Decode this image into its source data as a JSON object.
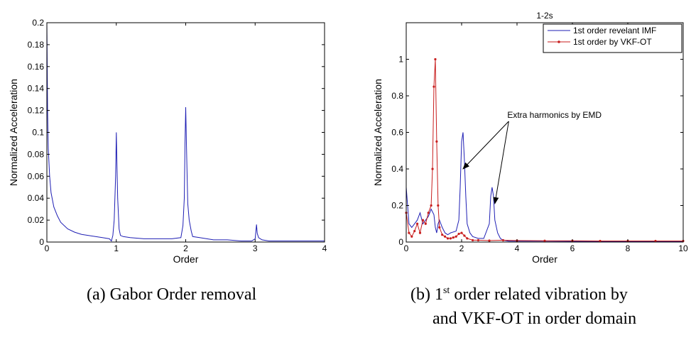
{
  "chart_data": [
    {
      "type": "line",
      "title": "",
      "xlabel": "Order",
      "ylabel": "Normalized Acceleration",
      "xlim": [
        0,
        4
      ],
      "ylim": [
        0,
        0.2
      ],
      "xticks": [
        "0",
        "1",
        "2",
        "3",
        "4"
      ],
      "yticks": [
        "0",
        "0.02",
        "0.04",
        "0.06",
        "0.08",
        "0.1",
        "0.12",
        "0.14",
        "0.16",
        "0.18",
        "0.2"
      ],
      "grid": false,
      "series": [
        {
          "color": "#1f1fb4",
          "x": [
            0,
            0.01,
            0.02,
            0.04,
            0.06,
            0.1,
            0.15,
            0.2,
            0.3,
            0.4,
            0.5,
            0.6,
            0.7,
            0.8,
            0.9,
            0.93,
            0.95,
            0.97,
            0.99,
            1.0,
            1.01,
            1.02,
            1.04,
            1.06,
            1.1,
            1.2,
            1.4,
            1.6,
            1.8,
            1.93,
            1.96,
            1.98,
            1.99,
            2.0,
            2.01,
            2.02,
            2.03,
            2.05,
            2.08,
            2.1,
            2.2,
            2.4,
            2.6,
            2.8,
            2.95,
            3.0,
            3.02,
            3.03,
            3.05,
            3.1,
            3.2,
            3.5,
            4.0
          ],
          "y": [
            0.2,
            0.12,
            0.085,
            0.06,
            0.045,
            0.032,
            0.024,
            0.018,
            0.012,
            0.009,
            0.007,
            0.006,
            0.005,
            0.004,
            0.003,
            0.001,
            0.006,
            0.02,
            0.06,
            0.1,
            0.07,
            0.04,
            0.012,
            0.006,
            0.005,
            0.004,
            0.003,
            0.003,
            0.003,
            0.004,
            0.015,
            0.04,
            0.09,
            0.123,
            0.09,
            0.06,
            0.035,
            0.02,
            0.01,
            0.005,
            0.004,
            0.002,
            0.002,
            0.001,
            0.001,
            0.003,
            0.016,
            0.008,
            0.004,
            0.002,
            0.001,
            0.001,
            0.001
          ]
        }
      ]
    },
    {
      "type": "line",
      "title": "1-2s",
      "xlabel": "Order",
      "ylabel": "Normalized Acceleration",
      "xlim": [
        0,
        10
      ],
      "ylim": [
        0,
        1.2
      ],
      "xticks": [
        "0",
        "2",
        "4",
        "6",
        "8",
        "10"
      ],
      "yticks": [
        "0",
        "0.2",
        "0.4",
        "0.6",
        "0.8",
        "1"
      ],
      "grid": false,
      "legend_position": "top-right",
      "annotation": "Extra harmonics by EMD",
      "series": [
        {
          "name": "1st order revelant IMF",
          "color": "#1f1fb4",
          "x": [
            0,
            0.1,
            0.2,
            0.3,
            0.4,
            0.5,
            0.6,
            0.7,
            0.8,
            0.9,
            1.0,
            1.05,
            1.1,
            1.15,
            1.2,
            1.3,
            1.4,
            1.5,
            1.6,
            1.8,
            1.9,
            1.95,
            2.0,
            2.05,
            2.1,
            2.15,
            2.2,
            2.3,
            2.4,
            2.6,
            2.8,
            3.0,
            3.05,
            3.1,
            3.15,
            3.2,
            3.3,
            3.4,
            3.5,
            3.7,
            4.0,
            5.0,
            6.0,
            7.0,
            8.0,
            9.0,
            10.0
          ],
          "y": [
            0.3,
            0.1,
            0.08,
            0.1,
            0.12,
            0.16,
            0.1,
            0.12,
            0.14,
            0.18,
            0.15,
            0.08,
            0.05,
            0.1,
            0.12,
            0.08,
            0.05,
            0.04,
            0.05,
            0.06,
            0.12,
            0.3,
            0.55,
            0.6,
            0.45,
            0.25,
            0.1,
            0.05,
            0.03,
            0.02,
            0.02,
            0.1,
            0.25,
            0.3,
            0.25,
            0.12,
            0.05,
            0.02,
            0.01,
            0.005,
            0.005,
            0.005,
            0.004,
            0.004,
            0.004,
            0.004,
            0.004
          ]
        },
        {
          "name": "1st order by VKF-OT",
          "color": "#c81e1e",
          "x": [
            0,
            0.1,
            0.2,
            0.3,
            0.4,
            0.5,
            0.6,
            0.7,
            0.8,
            0.9,
            0.95,
            1.0,
            1.05,
            1.1,
            1.15,
            1.2,
            1.3,
            1.4,
            1.5,
            1.6,
            1.7,
            1.8,
            1.9,
            2.0,
            2.1,
            2.2,
            2.4,
            2.6,
            3.0,
            3.5,
            4.0,
            5.0,
            6.0,
            7.0,
            8.0,
            9.0,
            10.0
          ],
          "y": [
            0.16,
            0.05,
            0.03,
            0.06,
            0.1,
            0.05,
            0.12,
            0.1,
            0.16,
            0.2,
            0.4,
            0.85,
            1.0,
            0.55,
            0.2,
            0.08,
            0.04,
            0.03,
            0.02,
            0.02,
            0.025,
            0.03,
            0.045,
            0.05,
            0.035,
            0.02,
            0.01,
            0.01,
            0.008,
            0.01,
            0.008,
            0.007,
            0.007,
            0.006,
            0.006,
            0.006,
            0.006
          ]
        }
      ]
    }
  ],
  "captions": {
    "left": "(a) Gabor Order removal",
    "right_line1_prefix": "(b) 1",
    "right_line1_sup": "st",
    "right_line1_rest": " order related vibration by",
    "right_line2": "and VKF-OT in order domain"
  }
}
